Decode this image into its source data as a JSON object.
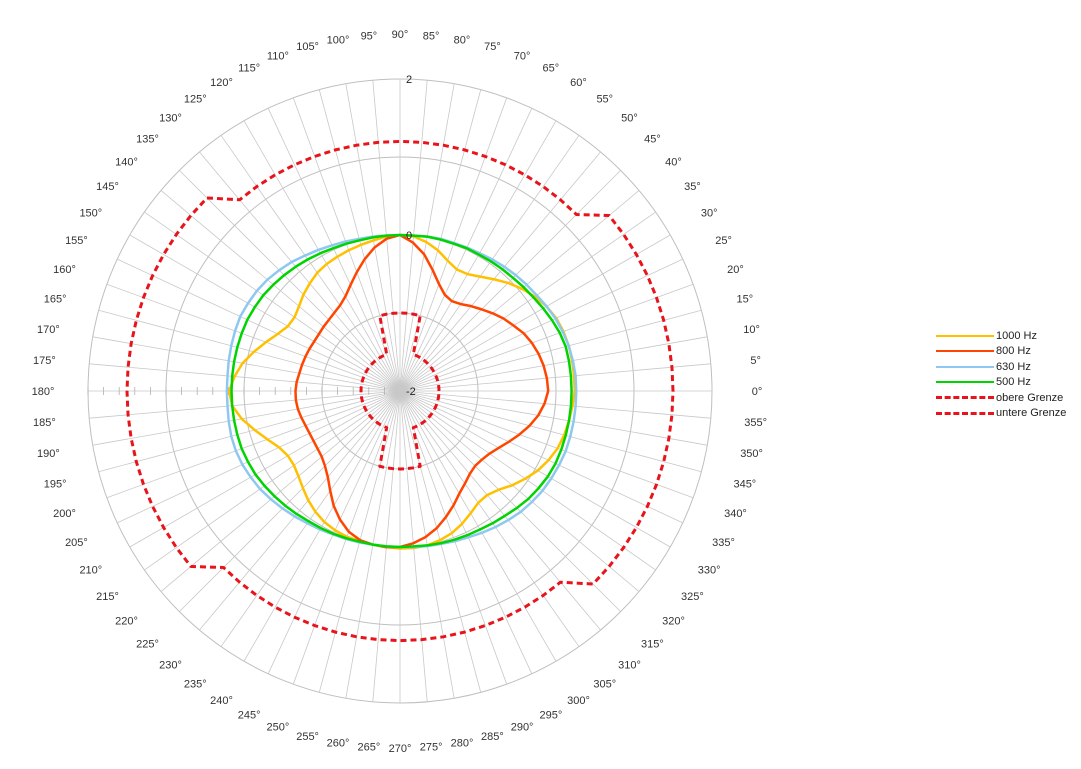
{
  "chart_data": {
    "type": "radar",
    "angle_unit": "degrees",
    "angles": [
      0,
      5,
      10,
      15,
      20,
      25,
      30,
      35,
      40,
      45,
      50,
      55,
      60,
      65,
      70,
      75,
      80,
      85,
      90,
      95,
      100,
      105,
      110,
      115,
      120,
      125,
      130,
      135,
      140,
      145,
      150,
      155,
      160,
      165,
      170,
      175,
      180,
      185,
      190,
      195,
      200,
      205,
      210,
      215,
      220,
      225,
      230,
      235,
      240,
      245,
      250,
      255,
      260,
      265,
      270,
      275,
      280,
      285,
      290,
      295,
      300,
      305,
      310,
      315,
      320,
      325,
      330,
      335,
      340,
      345,
      350,
      355
    ],
    "angle_labels": [
      "0°",
      "5°",
      "10°",
      "15°",
      "20°",
      "25°",
      "30°",
      "35°",
      "40°",
      "45°",
      "50°",
      "55°",
      "60°",
      "65°",
      "70°",
      "75°",
      "80°",
      "85°",
      "90°",
      "95°",
      "100°",
      "105°",
      "110°",
      "115°",
      "120°",
      "125°",
      "130°",
      "135°",
      "140°",
      "145°",
      "150°",
      "155°",
      "160°",
      "165°",
      "170°",
      "175°",
      "180°",
      "185°",
      "190°",
      "195°",
      "200°",
      "205°",
      "210°",
      "215°",
      "220°",
      "225°",
      "230°",
      "235°",
      "240°",
      "245°",
      "250°",
      "255°",
      "260°",
      "265°",
      "270°",
      "275°",
      "280°",
      "285°",
      "290°",
      "295°",
      "300°",
      "305°",
      "310°",
      "315°",
      "320°",
      "325°",
      "330°",
      "335°",
      "340°",
      "345°",
      "350°",
      "355°"
    ],
    "radial_range": [
      -2,
      2
    ],
    "radial_tick_labels": [
      "-2",
      "0",
      "2"
    ],
    "radial_ticks": [
      -1,
      0,
      1,
      2
    ],
    "grid": true,
    "legend": "right",
    "series": [
      {
        "name": "1000 Hz",
        "color": "#FFC000",
        "dash": "solid",
        "values": [
          0.24,
          0.24,
          0.24,
          0.24,
          0.23,
          0.21,
          0.17,
          0.11,
          0.04,
          -0.04,
          -0.13,
          -0.21,
          -0.27,
          -0.28,
          -0.22,
          -0.13,
          -0.06,
          -0.01,
          0.0,
          -0.01,
          -0.04,
          -0.06,
          -0.08,
          -0.1,
          -0.12,
          -0.15,
          -0.2,
          -0.25,
          -0.31,
          -0.35,
          -0.34,
          -0.27,
          -0.17,
          -0.06,
          0.05,
          0.13,
          0.19,
          0.16,
          0.06,
          -0.07,
          -0.19,
          -0.29,
          -0.34,
          -0.34,
          -0.3,
          -0.24,
          -0.17,
          -0.11,
          -0.06,
          -0.03,
          -0.01,
          -0.01,
          -0.0,
          0.01,
          0.02,
          0.02,
          0.01,
          -0.02,
          -0.06,
          -0.12,
          -0.19,
          -0.25,
          -0.26,
          -0.21,
          -0.12,
          -0.04,
          0.04,
          0.1,
          0.15,
          0.18,
          0.2,
          0.22
        ]
      },
      {
        "name": "800 Hz",
        "color": "#FF4500",
        "dash": "solid",
        "values": [
          -0.1,
          -0.11,
          -0.13,
          -0.16,
          -0.2,
          -0.25,
          -0.32,
          -0.38,
          -0.45,
          -0.52,
          -0.58,
          -0.64,
          -0.67,
          -0.64,
          -0.54,
          -0.39,
          -0.22,
          -0.09,
          0.0,
          -0.04,
          -0.13,
          -0.25,
          -0.38,
          -0.5,
          -0.6,
          -0.66,
          -0.69,
          -0.71,
          -0.72,
          -0.73,
          -0.73,
          -0.72,
          -0.71,
          -0.7,
          -0.69,
          -0.67,
          -0.66,
          -0.66,
          -0.67,
          -0.69,
          -0.71,
          -0.72,
          -0.72,
          -0.71,
          -0.69,
          -0.64,
          -0.56,
          -0.44,
          -0.3,
          -0.18,
          -0.08,
          -0.02,
          0.0,
          0.01,
          0.0,
          -0.04,
          -0.1,
          -0.18,
          -0.28,
          -0.38,
          -0.48,
          -0.55,
          -0.61,
          -0.64,
          -0.63,
          -0.6,
          -0.54,
          -0.46,
          -0.37,
          -0.28,
          -0.2,
          -0.14
        ]
      },
      {
        "name": "630 Hz",
        "color": "#8EC8F0",
        "dash": "solid",
        "values": [
          0.26,
          0.26,
          0.25,
          0.24,
          0.22,
          0.2,
          0.17,
          0.14,
          0.12,
          0.1,
          0.08,
          0.06,
          0.04,
          0.03,
          0.02,
          0.02,
          0.01,
          0.0,
          0.0,
          0.0,
          0.01,
          0.02,
          0.04,
          0.06,
          0.09,
          0.12,
          0.16,
          0.19,
          0.22,
          0.24,
          0.25,
          0.26,
          0.25,
          0.24,
          0.23,
          0.22,
          0.22,
          0.22,
          0.23,
          0.24,
          0.24,
          0.23,
          0.21,
          0.19,
          0.16,
          0.13,
          0.1,
          0.07,
          0.05,
          0.03,
          0.02,
          0.01,
          0.0,
          0.0,
          0.0,
          0.01,
          0.02,
          0.03,
          0.05,
          0.07,
          0.1,
          0.13,
          0.16,
          0.19,
          0.21,
          0.23,
          0.24,
          0.25,
          0.26,
          0.26,
          0.26,
          0.26
        ]
      },
      {
        "name": "500 Hz",
        "color": "#00D400",
        "dash": "solid",
        "values": [
          0.2,
          0.2,
          0.2,
          0.2,
          0.18,
          0.15,
          0.12,
          0.09,
          0.07,
          0.05,
          0.04,
          0.03,
          0.02,
          0.02,
          0.01,
          0.01,
          0.01,
          0.0,
          0.0,
          0.0,
          0.0,
          0.0,
          0.01,
          0.02,
          0.04,
          0.06,
          0.08,
          0.1,
          0.12,
          0.14,
          0.15,
          0.16,
          0.16,
          0.16,
          0.16,
          0.16,
          0.16,
          0.16,
          0.16,
          0.16,
          0.16,
          0.15,
          0.14,
          0.12,
          0.1,
          0.08,
          0.06,
          0.04,
          0.03,
          0.02,
          0.01,
          0.0,
          0.0,
          0.0,
          0.0,
          0.0,
          0.01,
          0.02,
          0.03,
          0.04,
          0.05,
          0.07,
          0.09,
          0.12,
          0.15,
          0.17,
          0.19,
          0.2,
          0.2,
          0.2,
          0.2,
          0.2
        ]
      },
      {
        "name": "obere Grenze",
        "color": "#E8141B",
        "dash": "dashed",
        "values": [
          1.5,
          1.5,
          1.5,
          1.5,
          1.5,
          1.5,
          1.5,
          1.5,
          1.5,
          1.2,
          1.2,
          1.2,
          1.2,
          1.2,
          1.2,
          1.2,
          1.2,
          1.2,
          1.2,
          1.2,
          1.2,
          1.2,
          1.2,
          1.2,
          1.2,
          1.2,
          1.2,
          1.5,
          1.5,
          1.5,
          1.5,
          1.5,
          1.5,
          1.5,
          1.5,
          1.5,
          1.5,
          1.5,
          1.5,
          1.5,
          1.5,
          1.5,
          1.5,
          1.5,
          1.5,
          1.2,
          1.2,
          1.2,
          1.2,
          1.2,
          1.2,
          1.2,
          1.2,
          1.2,
          1.2,
          1.2,
          1.2,
          1.2,
          1.2,
          1.2,
          1.2,
          1.2,
          1.2,
          1.5,
          1.5,
          1.5,
          1.5,
          1.5,
          1.5,
          1.5,
          1.5,
          1.5
        ]
      },
      {
        "name": "untere Grenze",
        "color": "#E8141B",
        "dash": "dashed",
        "values": [
          -1.5,
          -1.5,
          -1.5,
          -1.5,
          -1.5,
          -1.5,
          -1.5,
          -1.5,
          -1.5,
          -1.5,
          -1.5,
          -1.5,
          -1.5,
          -1.5,
          -1.5,
          -1.0,
          -1.0,
          -1.0,
          -1.0,
          -1.0,
          -1.0,
          -1.0,
          -1.5,
          -1.5,
          -1.5,
          -1.5,
          -1.5,
          -1.5,
          -1.5,
          -1.5,
          -1.5,
          -1.5,
          -1.5,
          -1.5,
          -1.5,
          -1.5,
          -1.5,
          -1.5,
          -1.5,
          -1.5,
          -1.5,
          -1.5,
          -1.5,
          -1.5,
          -1.5,
          -1.5,
          -1.5,
          -1.5,
          -1.5,
          -1.5,
          -1.5,
          -1.0,
          -1.0,
          -1.0,
          -1.0,
          -1.0,
          -1.0,
          -1.0,
          -1.5,
          -1.5,
          -1.5,
          -1.5,
          -1.5,
          -1.5,
          -1.5,
          -1.5,
          -1.5,
          -1.5,
          -1.5,
          -1.5,
          -1.5,
          -1.5
        ]
      }
    ]
  }
}
